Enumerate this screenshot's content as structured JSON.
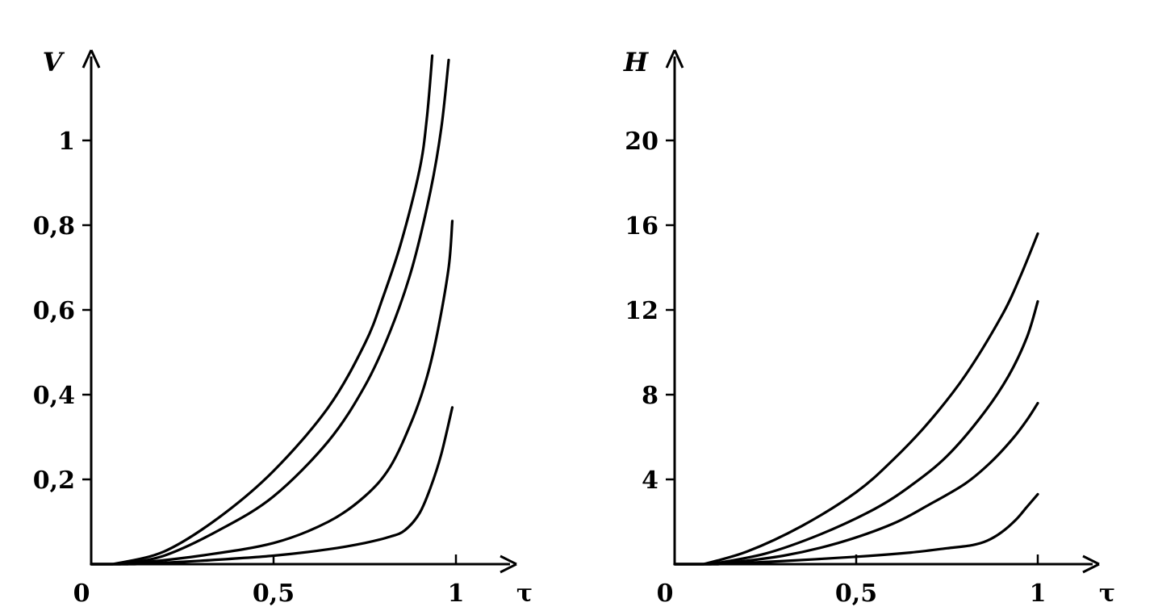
{
  "chart_data": [
    {
      "type": "line",
      "ylabel": "V",
      "xlabel": "τ",
      "origin_label": "0",
      "xlim": [
        0,
        1.15
      ],
      "ylim": [
        0,
        1.2
      ],
      "x_ticks": [
        {
          "value": 0.5,
          "label": "0,5"
        },
        {
          "value": 1,
          "label": "1"
        }
      ],
      "y_ticks": [
        {
          "value": 0.2,
          "label": "0,2"
        },
        {
          "value": 0.4,
          "label": "0,4"
        },
        {
          "value": 0.6,
          "label": "0,6"
        },
        {
          "value": 0.8,
          "label": "0,8"
        },
        {
          "value": 1,
          "label": "1"
        }
      ],
      "series": [
        {
          "x": [
            0.06,
            0.2,
            0.35,
            0.5,
            0.65,
            0.75,
            0.8,
            0.85,
            0.9,
            0.92,
            0.935
          ],
          "y": [
            0,
            0.03,
            0.11,
            0.22,
            0.37,
            0.52,
            0.63,
            0.76,
            0.93,
            1.05,
            1.2
          ]
        },
        {
          "x": [
            0.08,
            0.2,
            0.35,
            0.5,
            0.65,
            0.75,
            0.82,
            0.88,
            0.93,
            0.96,
            0.98
          ],
          "y": [
            0,
            0.02,
            0.08,
            0.16,
            0.29,
            0.42,
            0.55,
            0.7,
            0.88,
            1.03,
            1.19
          ]
        },
        {
          "x": [
            0.1,
            0.3,
            0.5,
            0.65,
            0.75,
            0.82,
            0.88,
            0.92,
            0.95,
            0.98,
            0.99
          ],
          "y": [
            0,
            0.02,
            0.05,
            0.1,
            0.16,
            0.23,
            0.34,
            0.44,
            0.55,
            0.7,
            0.81
          ]
        },
        {
          "x": [
            0.12,
            0.3,
            0.5,
            0.65,
            0.75,
            0.82,
            0.86,
            0.9,
            0.93,
            0.96,
            0.99
          ],
          "y": [
            0,
            0.008,
            0.02,
            0.035,
            0.05,
            0.065,
            0.08,
            0.12,
            0.18,
            0.26,
            0.37
          ]
        }
      ]
    },
    {
      "type": "line",
      "ylabel": "H",
      "xlabel": "τ",
      "origin_label": "0",
      "xlim": [
        0,
        1.15
      ],
      "ylim": [
        0,
        24
      ],
      "x_ticks": [
        {
          "value": 0.5,
          "label": "0,5"
        },
        {
          "value": 1,
          "label": "1"
        }
      ],
      "y_ticks": [
        {
          "value": 4,
          "label": "4"
        },
        {
          "value": 8,
          "label": "8"
        },
        {
          "value": 12,
          "label": "12"
        },
        {
          "value": 16,
          "label": "16"
        },
        {
          "value": 20,
          "label": "20"
        }
      ],
      "series": [
        {
          "x": [
            0.08,
            0.2,
            0.35,
            0.5,
            0.6,
            0.7,
            0.8,
            0.9,
            0.95,
            1.0
          ],
          "y": [
            0,
            0.6,
            1.8,
            3.4,
            4.9,
            6.7,
            8.9,
            11.7,
            13.5,
            15.6
          ]
        },
        {
          "x": [
            0.1,
            0.25,
            0.4,
            0.55,
            0.65,
            0.75,
            0.85,
            0.92,
            0.97,
            1.0
          ],
          "y": [
            0,
            0.5,
            1.4,
            2.6,
            3.7,
            5.1,
            7.1,
            8.9,
            10.7,
            12.4
          ]
        },
        {
          "x": [
            0.12,
            0.3,
            0.45,
            0.6,
            0.7,
            0.8,
            0.87,
            0.93,
            0.97,
            1.0
          ],
          "y": [
            0,
            0.4,
            1.0,
            1.9,
            2.8,
            3.8,
            4.8,
            5.9,
            6.8,
            7.6
          ]
        },
        {
          "x": [
            0.12,
            0.3,
            0.5,
            0.65,
            0.75,
            0.82,
            0.86,
            0.9,
            0.94,
            0.97,
            1.0
          ],
          "y": [
            0,
            0.15,
            0.35,
            0.55,
            0.75,
            0.9,
            1.1,
            1.5,
            2.1,
            2.7,
            3.3
          ]
        }
      ]
    }
  ]
}
